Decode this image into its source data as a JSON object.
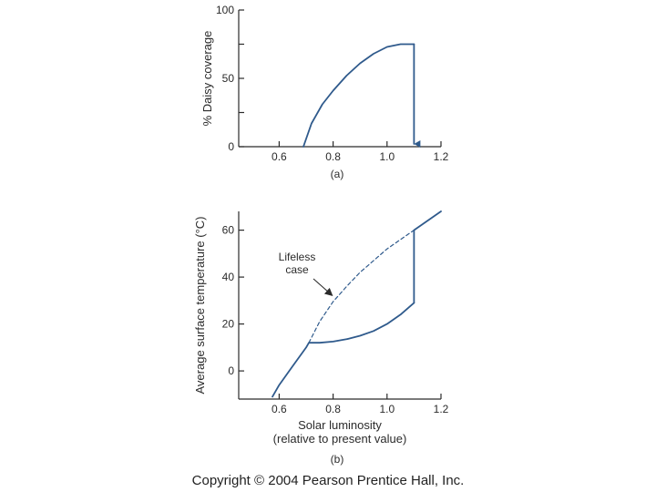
{
  "chart_data": [
    {
      "type": "line",
      "panel_label": "(a)",
      "xlabel": "",
      "ylabel": "% Daisy coverage",
      "xlim": [
        0.45,
        1.2
      ],
      "ylim": [
        0,
        100
      ],
      "x_ticks": [
        0.6,
        0.8,
        1.0,
        1.2
      ],
      "x_tick_labels": [
        "0.6",
        "0.8",
        "1.0",
        "1.2"
      ],
      "y_ticks": [
        0,
        25,
        50,
        75,
        100
      ],
      "y_tick_labels": [
        "0",
        "",
        "50",
        "",
        "100"
      ],
      "grid": false,
      "series": [
        {
          "style": "solid",
          "color": "#2f5a8c",
          "x": [
            0.69,
            0.72,
            0.76,
            0.8,
            0.85,
            0.9,
            0.95,
            1.0,
            1.05,
            1.1
          ],
          "y": [
            0,
            17,
            31,
            41,
            52,
            61,
            68,
            73,
            75,
            75
          ]
        },
        {
          "style": "arrow-down",
          "color": "#2f5a8c",
          "x": [
            1.1,
            1.1
          ],
          "y": [
            75,
            2
          ]
        }
      ]
    },
    {
      "type": "line",
      "panel_label": "(b)",
      "xlabel": "Solar luminosity",
      "xlabel_sub": "(relative to present value)",
      "ylabel": "Average surface temperature (°C)",
      "xlim": [
        0.45,
        1.2
      ],
      "ylim": [
        -12,
        68
      ],
      "x_ticks": [
        0.6,
        0.8,
        1.0,
        1.2
      ],
      "x_tick_labels": [
        "0.6",
        "0.8",
        "1.0",
        "1.2"
      ],
      "y_ticks": [
        0,
        20,
        40,
        60
      ],
      "y_tick_labels": [
        "0",
        "20",
        "40",
        "60"
      ],
      "grid": false,
      "annotation": {
        "lines": [
          "Lifeless",
          "case"
        ],
        "arrow_to": {
          "x": 0.8,
          "y": 31
        }
      },
      "series": [
        {
          "style": "solid",
          "color": "#2f5a8c",
          "x": [
            0.575,
            0.6,
            0.65,
            0.7,
            0.71,
            0.75,
            0.8,
            0.85,
            0.9,
            0.95,
            1.0,
            1.05,
            1.08,
            1.1
          ],
          "y": [
            -11,
            -6,
            2,
            10,
            12,
            12,
            12.5,
            13.5,
            15,
            17,
            20,
            24,
            27,
            29
          ]
        },
        {
          "style": "solid",
          "color": "#2f5a8c",
          "x": [
            1.1,
            1.1,
            1.2
          ],
          "y": [
            29,
            60,
            68
          ]
        },
        {
          "style": "dashed",
          "color": "#2f5a8c",
          "x": [
            0.71,
            0.75,
            0.8,
            0.85,
            0.9,
            0.95,
            1.0,
            1.05,
            1.1
          ],
          "y": [
            12,
            21,
            29.5,
            36,
            42,
            47,
            52,
            56,
            60
          ]
        }
      ]
    }
  ],
  "footer": {
    "copyright": "Copyright © 2004 Pearson Prentice Hall, Inc."
  }
}
